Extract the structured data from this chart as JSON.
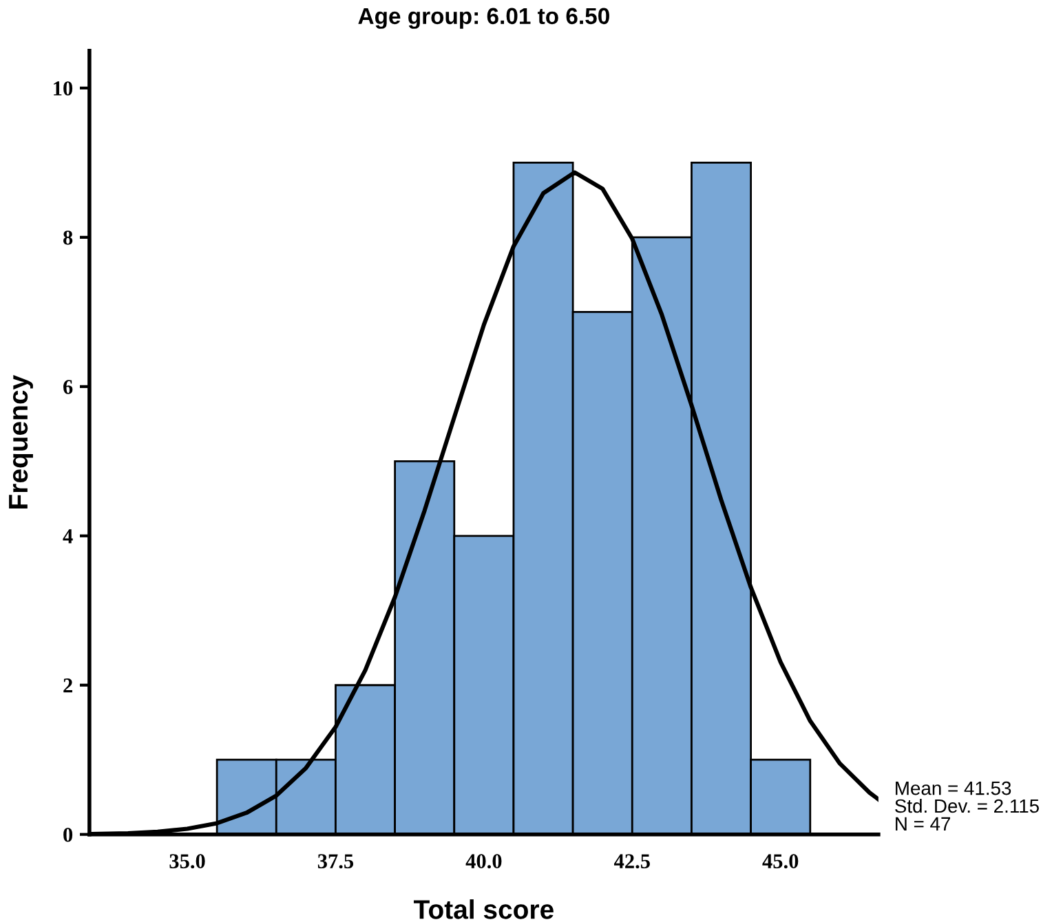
{
  "chart_data": [
    {
      "type": "histogram",
      "title": "Age group: 6.01 to 6.50",
      "xlabel": "Total score",
      "ylabel": "Frequency",
      "bins": [
        35.5,
        36.5,
        37.5,
        38.5,
        39.5,
        40.5,
        41.5,
        42.5,
        43.5,
        44.5,
        45.5
      ],
      "values": [
        1,
        1,
        2,
        5,
        4,
        9,
        7,
        8,
        9,
        1
      ],
      "color": "#79a7d6",
      "xlim": [
        33.35,
        46.65
      ],
      "ylim": [
        0,
        10.5
      ],
      "xticks": [
        {
          "value": 35,
          "label": "35.0"
        },
        {
          "value": 37.5,
          "label": "37.5"
        },
        {
          "value": 40,
          "label": "40.0"
        },
        {
          "value": 42.5,
          "label": "42.5"
        },
        {
          "value": 45,
          "label": "45.0"
        }
      ],
      "yticks": [
        0,
        2,
        4,
        6,
        8,
        10
      ],
      "grid": false,
      "legend": false,
      "series": [
        {
          "type": "line",
          "color": "#000000",
          "x": [
            33.4,
            34.0,
            34.5,
            35.0,
            35.5,
            36.0,
            36.5,
            37.0,
            37.5,
            38.0,
            38.5,
            39.0,
            39.5,
            40.0,
            40.5,
            41.0,
            41.53,
            42.0,
            42.5,
            43.0,
            43.5,
            44.0,
            44.5,
            45.0,
            45.5,
            46.0,
            46.5,
            46.65
          ],
          "values": [
            0.006,
            0.016,
            0.035,
            0.075,
            0.15,
            0.29,
            0.52,
            0.89,
            1.44,
            2.2,
            3.18,
            4.34,
            5.59,
            6.83,
            7.88,
            8.59,
            8.87,
            8.65,
            7.98,
            6.96,
            5.75,
            4.48,
            3.31,
            2.31,
            1.52,
            0.95,
            0.56,
            0.47
          ]
        }
      ],
      "annotations": [
        "Mean = 41.53\nStd. Dev. = 2.115\nN = 47"
      ]
    }
  ]
}
